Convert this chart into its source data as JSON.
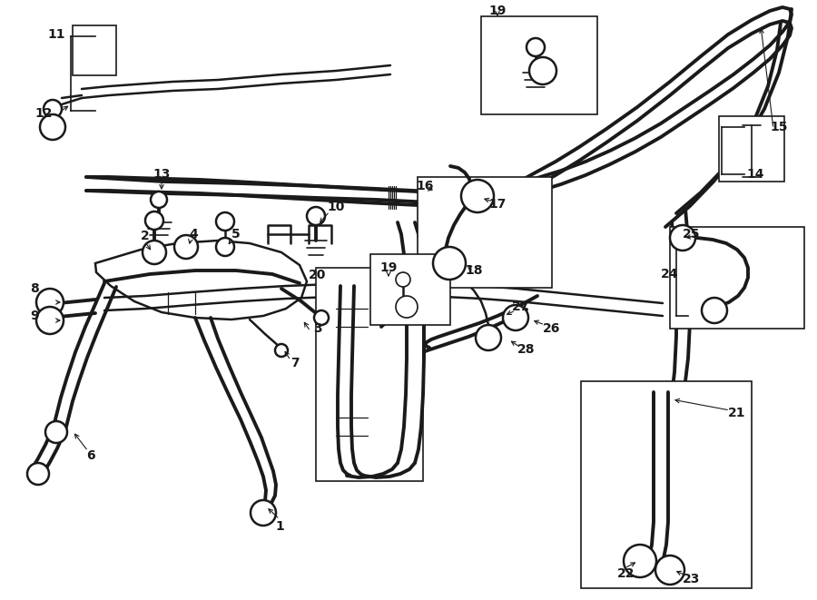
{
  "bg_color": "#ffffff",
  "line_color": "#1a1a1a",
  "lw_thin": 1.2,
  "lw_med": 1.8,
  "lw_thick": 2.8,
  "lw_hose": 2.2,
  "fontsize": 10,
  "fig_w": 9.0,
  "fig_h": 6.61,
  "dpi": 100,
  "xmin": 0,
  "xmax": 900,
  "ymin": 0,
  "ymax": 661
}
